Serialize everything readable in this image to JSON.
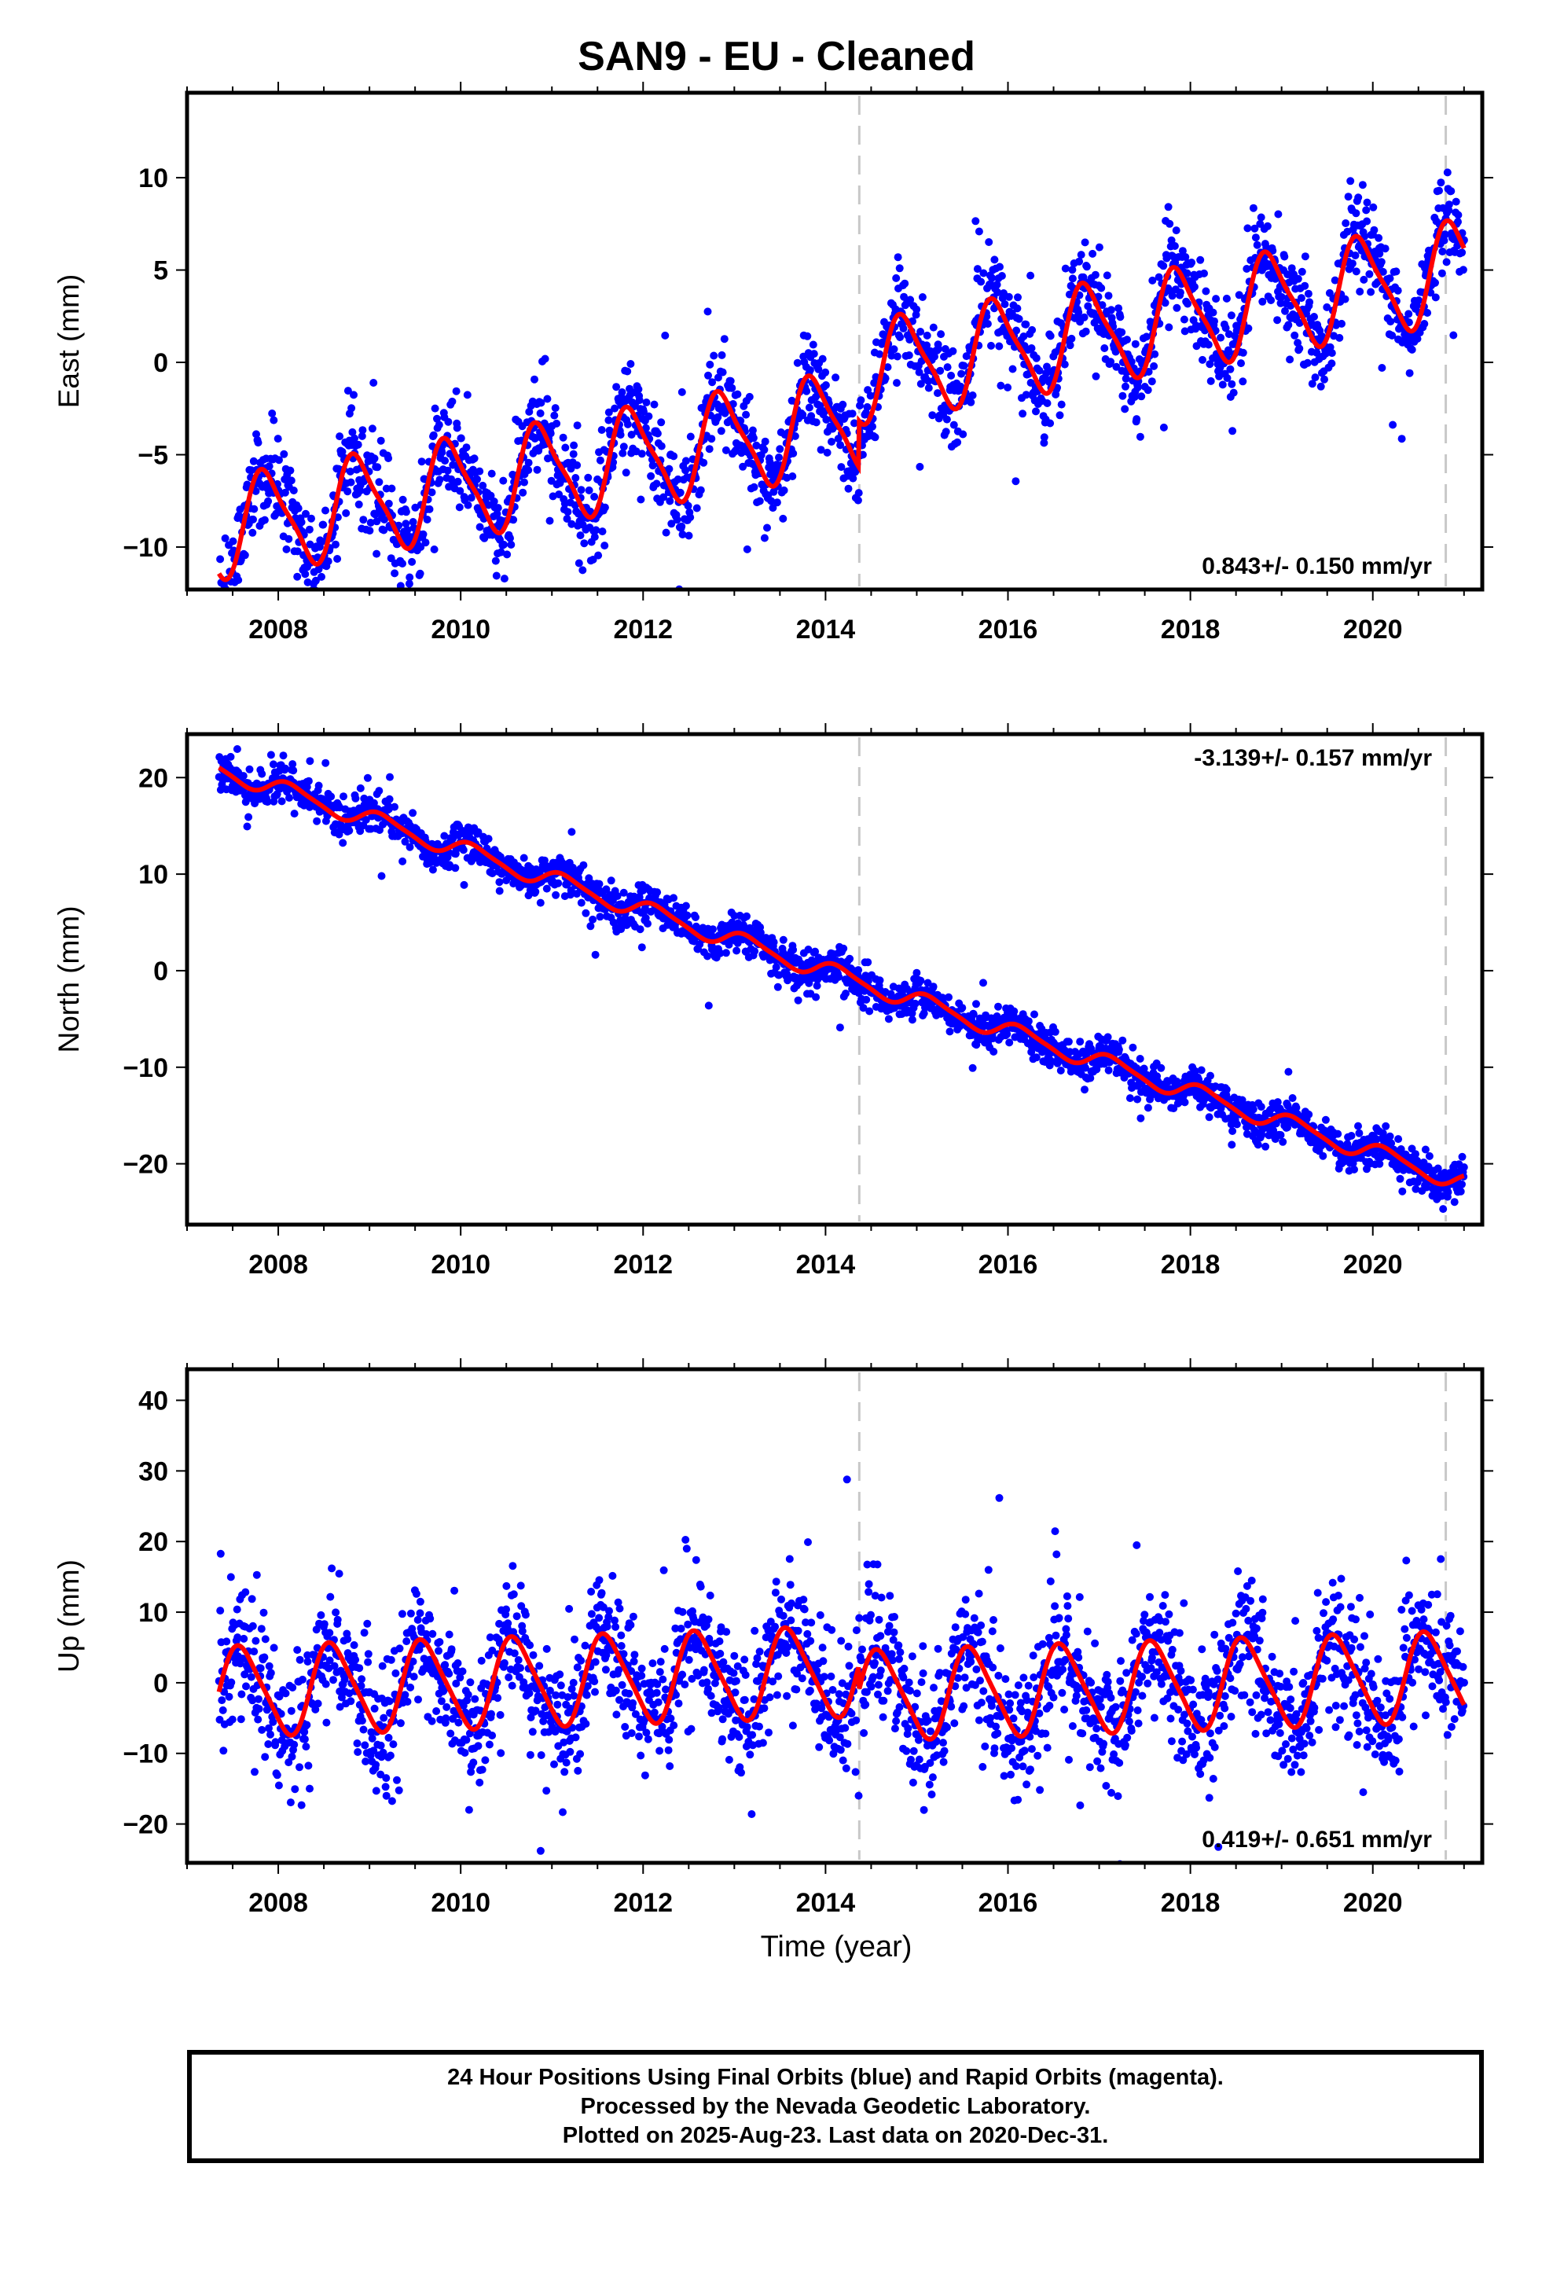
{
  "title": "SAN9  - EU - Cleaned",
  "xlabel": "Time (year)",
  "caption": [
    "24 Hour Positions Using Final Orbits (blue) and Rapid Orbits (magenta).",
    "Processed by the Nevada Geodetic Laboratory.",
    "Plotted on 2025-Aug-23. Last data on 2020-Dec-31."
  ],
  "colors": {
    "points": "#0000ff",
    "model": "#ff0000",
    "breaks": "#c8c8c8",
    "axis": "#000000"
  },
  "chart_data": [
    {
      "type": "scatter",
      "ylabel": "East (mm)",
      "xlim": [
        2007.0,
        2021.2
      ],
      "ylim": [
        -12.3,
        14.6
      ],
      "yticks": [
        -10,
        -5,
        0,
        5,
        10
      ],
      "xticks": [
        2008,
        2010,
        2012,
        2014,
        2016,
        2018,
        2020
      ],
      "rate_label": "0.843+/- 0.150 mm/yr",
      "rate_position": "bottom-right",
      "breaks": [
        2014.37,
        2020.8
      ],
      "data_range": [
        2007.35,
        2021.0
      ],
      "model": {
        "offset_at_2014": -3.4,
        "rate_mm_yr": 0.843,
        "step_at_break": 2.5,
        "annual_amplitude": 2.6,
        "annual_phase": -0.38,
        "semiannual_amplitude": 0.6,
        "scatter_sd": 1.3
      }
    },
    {
      "type": "scatter",
      "ylabel": "North (mm)",
      "xlim": [
        2007.0,
        2021.2
      ],
      "ylim": [
        -26.3,
        24.5
      ],
      "yticks": [
        -20,
        -10,
        0,
        10,
        20
      ],
      "xticks": [
        2008,
        2010,
        2012,
        2014,
        2016,
        2018,
        2020
      ],
      "rate_label": "-3.139+/- 0.157 mm/yr",
      "rate_position": "top-right",
      "breaks": [
        2014.37,
        2020.8
      ],
      "data_range": [
        2007.35,
        2021.0
      ],
      "model": {
        "offset_at_2014": 0.0,
        "rate_mm_yr": -3.139,
        "step_at_break": 0,
        "annual_amplitude": 0.9,
        "annual_phase": -0.1,
        "semiannual_amplitude": 0.2,
        "scatter_sd": 1.0
      }
    },
    {
      "type": "scatter",
      "ylabel": "Up (mm)",
      "xlim": [
        2007.0,
        2021.2
      ],
      "ylim": [
        -25.5,
        44.4
      ],
      "yticks": [
        -20,
        -10,
        0,
        10,
        20,
        30,
        40
      ],
      "xticks": [
        2008,
        2010,
        2012,
        2014,
        2016,
        2018,
        2020
      ],
      "rate_label": "0.419+/- 0.651 mm/yr",
      "rate_position": "bottom-right",
      "breaks": [
        2014.37,
        2020.8
      ],
      "data_range": [
        2007.35,
        2021.0
      ],
      "model": {
        "offset_at_2014": 1.5,
        "rate_mm_yr": 0.419,
        "step_at_break": -3.5,
        "annual_amplitude": 6.2,
        "annual_phase": 0.35,
        "semiannual_amplitude": 1.0,
        "scatter_sd": 4.5
      }
    }
  ]
}
